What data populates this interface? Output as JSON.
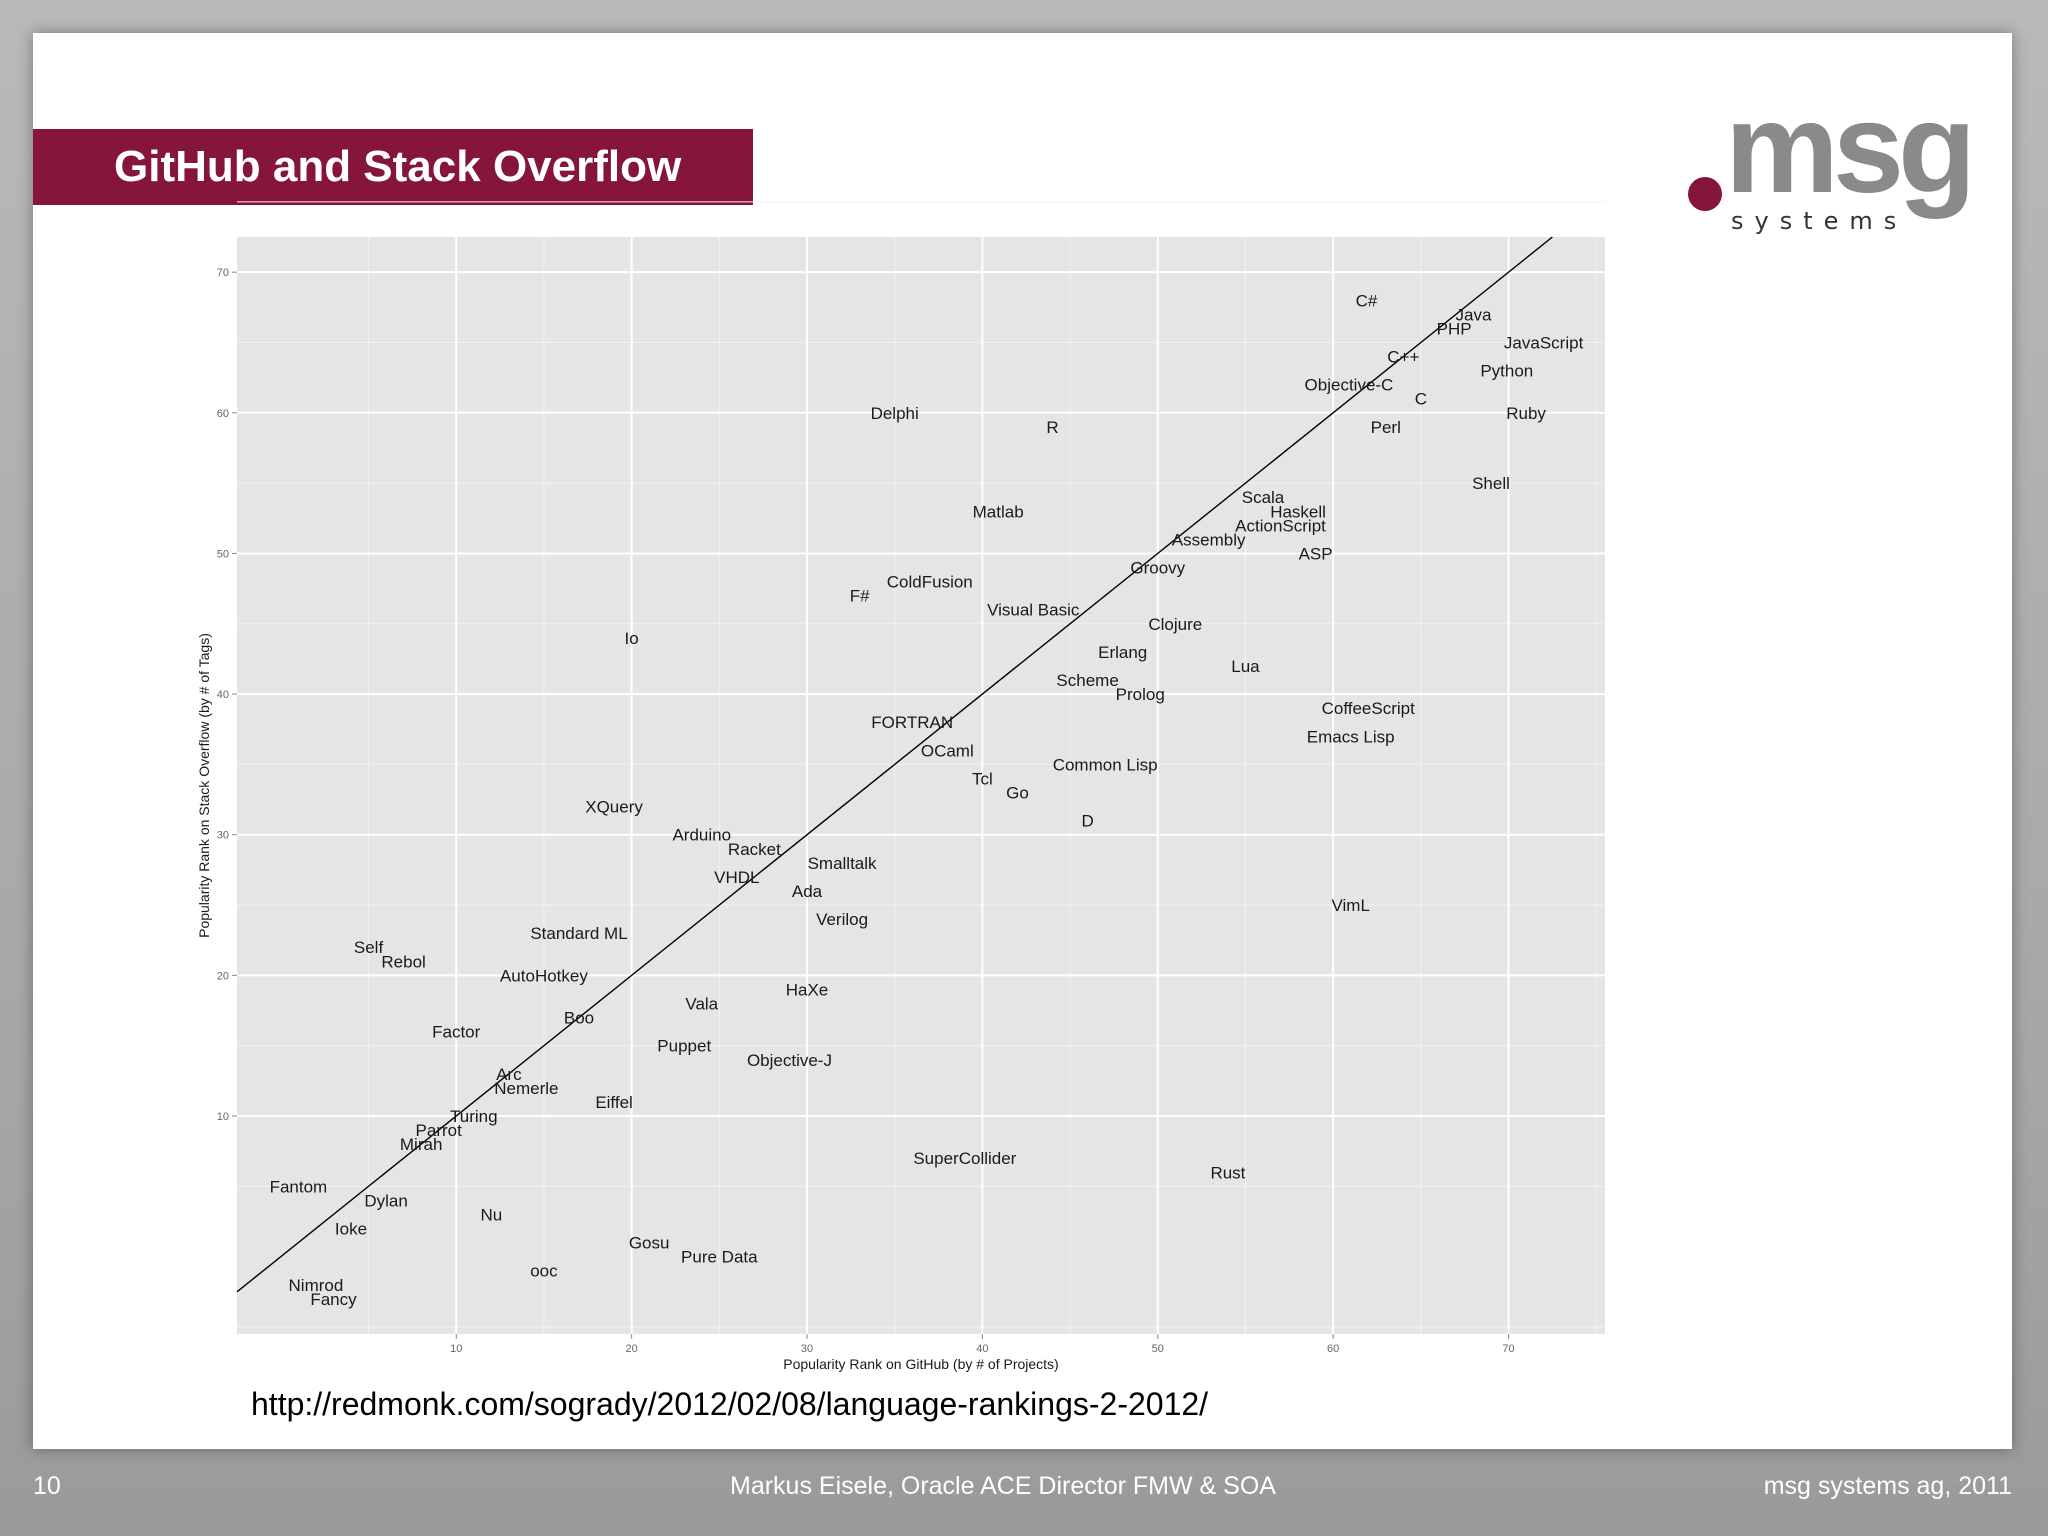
{
  "slide": {
    "title": "GitHub and Stack Overflow",
    "logo_text": "msg",
    "logo_subtext": "systems",
    "source_url": "http://redmonk.com/sogrady/2012/02/08/language-rankings-2-2012/",
    "page_number": "10",
    "footer_center": "Markus Eisele, Oracle ACE Director FMW & SOA",
    "footer_right": "msg systems ag, 2011",
    "colors": {
      "title_bar": "#86153a",
      "logo_gray": "#8a8a8a",
      "panel": "#e5e5e5",
      "grid": "#ffffff"
    }
  },
  "chart_data": {
    "type": "scatter",
    "title": "",
    "xlabel": "Popularity Rank on GitHub (by # of Projects)",
    "ylabel": "Popularity Rank on Stack Overflow (by # of Tags)",
    "xlim": [
      -2.5,
      75.5
    ],
    "ylim": [
      -5.5,
      72.5
    ],
    "xticks": [
      10,
      20,
      30,
      40,
      50,
      60,
      70
    ],
    "yticks": [
      10,
      20,
      30,
      40,
      50,
      60,
      70
    ],
    "grid": true,
    "reference_line": "y = x",
    "points": [
      {
        "label": "C#",
        "x": 61.9,
        "y": 68.0
      },
      {
        "label": "Java",
        "x": 68.0,
        "y": 67.0
      },
      {
        "label": "PHP",
        "x": 66.9,
        "y": 66.0
      },
      {
        "label": "JavaScript",
        "x": 72.0,
        "y": 65.0
      },
      {
        "label": "C++",
        "x": 64.0,
        "y": 64.0
      },
      {
        "label": "Python",
        "x": 69.9,
        "y": 63.0
      },
      {
        "label": "Objective-C",
        "x": 60.9,
        "y": 62.0
      },
      {
        "label": "C",
        "x": 65.0,
        "y": 61.0
      },
      {
        "label": "Ruby",
        "x": 71.0,
        "y": 60.0
      },
      {
        "label": "Perl",
        "x": 63.0,
        "y": 59.0
      },
      {
        "label": "Delphi",
        "x": 35.0,
        "y": 60.0
      },
      {
        "label": "R",
        "x": 44.0,
        "y": 59.0
      },
      {
        "label": "Shell",
        "x": 69.0,
        "y": 55.0
      },
      {
        "label": "Scala",
        "x": 56.0,
        "y": 54.0
      },
      {
        "label": "Matlab",
        "x": 40.9,
        "y": 53.0
      },
      {
        "label": "Haskell",
        "x": 58.0,
        "y": 53.0
      },
      {
        "label": "ActionScript",
        "x": 57.0,
        "y": 52.0
      },
      {
        "label": "Assembly",
        "x": 52.9,
        "y": 51.0
      },
      {
        "label": "ASP",
        "x": 59.0,
        "y": 50.0
      },
      {
        "label": "Groovy",
        "x": 50.0,
        "y": 49.0
      },
      {
        "label": "ColdFusion",
        "x": 37.0,
        "y": 48.0
      },
      {
        "label": "F#",
        "x": 33.0,
        "y": 47.0
      },
      {
        "label": "Visual Basic",
        "x": 42.9,
        "y": 46.0
      },
      {
        "label": "Clojure",
        "x": 51.0,
        "y": 45.0
      },
      {
        "label": "Io",
        "x": 20.0,
        "y": 44.0
      },
      {
        "label": "Erlang",
        "x": 48.0,
        "y": 43.0
      },
      {
        "label": "Lua",
        "x": 55.0,
        "y": 42.0
      },
      {
        "label": "Scheme",
        "x": 46.0,
        "y": 41.0
      },
      {
        "label": "Prolog",
        "x": 49.0,
        "y": 40.0
      },
      {
        "label": "CoffeeScript",
        "x": 62.0,
        "y": 39.0
      },
      {
        "label": "FORTRAN",
        "x": 36.0,
        "y": 38.0
      },
      {
        "label": "Emacs Lisp",
        "x": 61.0,
        "y": 37.0
      },
      {
        "label": "OCaml",
        "x": 38.0,
        "y": 36.0
      },
      {
        "label": "Common Lisp",
        "x": 47.0,
        "y": 35.0
      },
      {
        "label": "Tcl",
        "x": 40.0,
        "y": 34.0
      },
      {
        "label": "Go",
        "x": 42.0,
        "y": 33.0
      },
      {
        "label": "XQuery",
        "x": 19.0,
        "y": 32.0
      },
      {
        "label": "D",
        "x": 46.0,
        "y": 31.0
      },
      {
        "label": "Arduino",
        "x": 24.0,
        "y": 30.0
      },
      {
        "label": "Racket",
        "x": 27.0,
        "y": 29.0
      },
      {
        "label": "Smalltalk",
        "x": 32.0,
        "y": 28.0
      },
      {
        "label": "VHDL",
        "x": 26.0,
        "y": 27.0
      },
      {
        "label": "Ada",
        "x": 30.0,
        "y": 26.0
      },
      {
        "label": "VimL",
        "x": 61.0,
        "y": 25.0
      },
      {
        "label": "Verilog",
        "x": 32.0,
        "y": 24.0
      },
      {
        "label": "Standard ML",
        "x": 17.0,
        "y": 23.0
      },
      {
        "label": "Self",
        "x": 5.0,
        "y": 22.0
      },
      {
        "label": "Rebol",
        "x": 7.0,
        "y": 21.0
      },
      {
        "label": "AutoHotkey",
        "x": 15.0,
        "y": 20.0
      },
      {
        "label": "HaXe",
        "x": 30.0,
        "y": 19.0
      },
      {
        "label": "Vala",
        "x": 24.0,
        "y": 18.0
      },
      {
        "label": "Boo",
        "x": 17.0,
        "y": 17.0
      },
      {
        "label": "Factor",
        "x": 10.0,
        "y": 16.0
      },
      {
        "label": "Puppet",
        "x": 23.0,
        "y": 15.0
      },
      {
        "label": "Objective-J",
        "x": 29.0,
        "y": 14.0
      },
      {
        "label": "Arc",
        "x": 13.0,
        "y": 13.0
      },
      {
        "label": "Nemerle",
        "x": 14.0,
        "y": 12.0
      },
      {
        "label": "Eiffel",
        "x": 19.0,
        "y": 11.0
      },
      {
        "label": "Turing",
        "x": 11.0,
        "y": 10.0
      },
      {
        "label": "Parrot",
        "x": 9.0,
        "y": 9.0
      },
      {
        "label": "Mirah",
        "x": 8.0,
        "y": 8.0
      },
      {
        "label": "SuperCollider",
        "x": 39.0,
        "y": 7.0
      },
      {
        "label": "Fantom",
        "x": 1.0,
        "y": 5.0
      },
      {
        "label": "Rust",
        "x": 54.0,
        "y": 6.0
      },
      {
        "label": "Dylan",
        "x": 6.0,
        "y": 4.0
      },
      {
        "label": "Nu",
        "x": 12.0,
        "y": 3.0
      },
      {
        "label": "Ioke",
        "x": 4.0,
        "y": 2.0
      },
      {
        "label": "Gosu",
        "x": 21.0,
        "y": 1.0
      },
      {
        "label": "Pure Data",
        "x": 25.0,
        "y": 0.0
      },
      {
        "label": "ooc",
        "x": 15.0,
        "y": -1.0
      },
      {
        "label": "Nimrod",
        "x": 2.0,
        "y": -2.0
      },
      {
        "label": "Fancy",
        "x": 3.0,
        "y": -3.0
      }
    ]
  }
}
